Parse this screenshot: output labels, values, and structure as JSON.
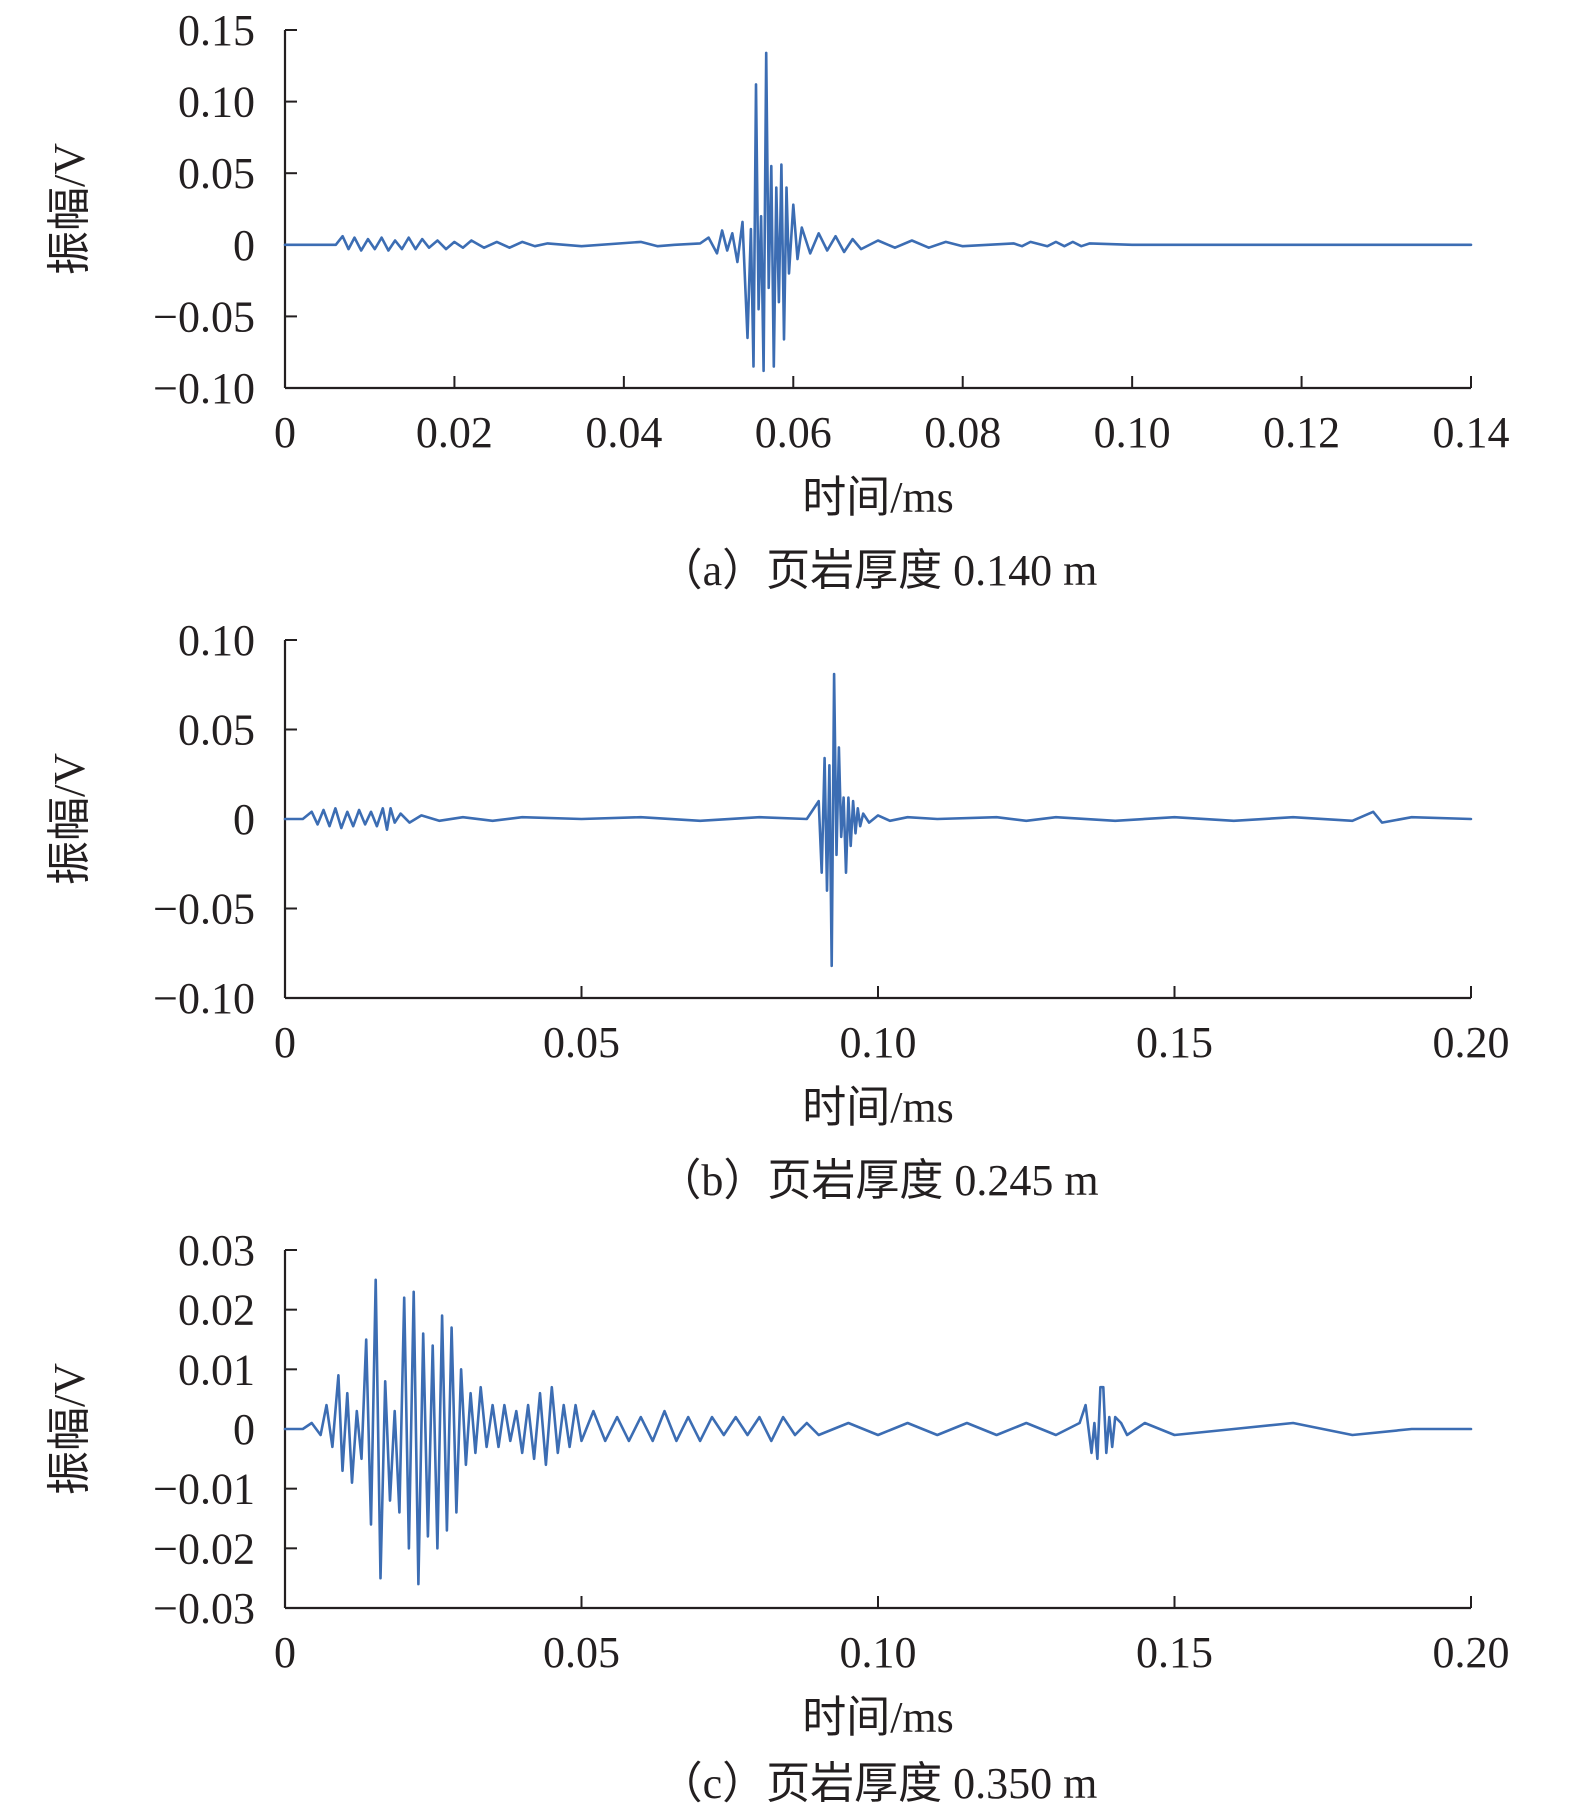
{
  "colors": {
    "series": "#3c6db3",
    "axis": "#231f20"
  },
  "chart_data": [
    {
      "type": "line",
      "caption": "（a）页岩厚度 0.140 m",
      "xlabel": "时间/ms",
      "ylabel": "振幅/V",
      "xlim": [
        0,
        0.14
      ],
      "ylim": [
        -0.1,
        0.15
      ],
      "xticks": [
        0,
        0.02,
        0.04,
        0.06,
        0.08,
        0.1,
        0.12,
        0.14
      ],
      "xtick_labels": [
        "0",
        "0.02",
        "0.04",
        "0.06",
        "0.08",
        "0.10",
        "0.12",
        "0.14"
      ],
      "yticks": [
        0.15,
        0.1,
        0.05,
        0,
        -0.05,
        -0.1
      ],
      "ytick_labels": [
        "0.15",
        "0.10",
        "0.05",
        "0",
        "−0.05",
        "−0.10"
      ],
      "grid": false,
      "series": [
        {
          "x": [
            0,
            0.006,
            0.0068,
            0.0075,
            0.0082,
            0.009,
            0.0098,
            0.0106,
            0.0114,
            0.0122,
            0.013,
            0.0138,
            0.0146,
            0.0154,
            0.0162,
            0.017,
            0.018,
            0.019,
            0.02,
            0.021,
            0.022,
            0.0235,
            0.025,
            0.0265,
            0.028,
            0.0295,
            0.031,
            0.035,
            0.042,
            0.044,
            0.046,
            0.049,
            0.05,
            0.051,
            0.0516,
            0.0522,
            0.0528,
            0.0534,
            0.054,
            0.0546,
            0.055,
            0.0553,
            0.0556,
            0.0559,
            0.0562,
            0.0565,
            0.0568,
            0.0571,
            0.0574,
            0.0577,
            0.058,
            0.0583,
            0.0586,
            0.0589,
            0.0592,
            0.0595,
            0.06,
            0.0605,
            0.061,
            0.062,
            0.063,
            0.064,
            0.065,
            0.066,
            0.067,
            0.068,
            0.07,
            0.072,
            0.074,
            0.076,
            0.078,
            0.08,
            0.086,
            0.087,
            0.088,
            0.09,
            0.091,
            0.092,
            0.093,
            0.094,
            0.095,
            0.1,
            0.14
          ],
          "y": [
            0,
            0,
            0.006,
            -0.003,
            0.005,
            -0.004,
            0.004,
            -0.003,
            0.005,
            -0.004,
            0.003,
            -0.003,
            0.005,
            -0.003,
            0.004,
            -0.002,
            0.003,
            -0.003,
            0.002,
            -0.002,
            0.003,
            -0.002,
            0.002,
            -0.002,
            0.002,
            -0.001,
            0.001,
            -0.001,
            0.002,
            -0.001,
            0,
            0.001,
            0.005,
            -0.006,
            0.01,
            -0.004,
            0.008,
            -0.012,
            0.016,
            -0.065,
            0.011,
            -0.085,
            0.112,
            -0.045,
            0.02,
            -0.088,
            0.134,
            -0.03,
            0.055,
            -0.085,
            0.04,
            -0.04,
            0.056,
            -0.066,
            0.04,
            -0.02,
            0.028,
            -0.01,
            0.012,
            -0.006,
            0.008,
            -0.004,
            0.006,
            -0.005,
            0.004,
            -0.003,
            0.003,
            -0.002,
            0.003,
            -0.002,
            0.002,
            -0.001,
            0.001,
            -0.001,
            0.002,
            -0.001,
            0.002,
            -0.001,
            0.002,
            -0.001,
            0.001,
            0,
            0
          ]
        }
      ]
    },
    {
      "type": "line",
      "caption": "（b）页岩厚度 0.245 m",
      "xlabel": "时间/ms",
      "ylabel": "振幅/V",
      "xlim": [
        0,
        0.2
      ],
      "ylim": [
        -0.1,
        0.1
      ],
      "xticks": [
        0,
        0.05,
        0.1,
        0.15,
        0.2
      ],
      "xtick_labels": [
        "0",
        "0.05",
        "0.10",
        "0.15",
        "0.20"
      ],
      "yticks": [
        0.1,
        0.05,
        0,
        -0.05,
        -0.1
      ],
      "ytick_labels": [
        "0.10",
        "0.05",
        "0",
        "−0.05",
        "−0.10"
      ],
      "grid": false,
      "series": [
        {
          "x": [
            0,
            0.003,
            0.0045,
            0.0055,
            0.0065,
            0.0075,
            0.0085,
            0.0095,
            0.0105,
            0.0115,
            0.0125,
            0.0135,
            0.0145,
            0.0155,
            0.0165,
            0.0172,
            0.0178,
            0.0185,
            0.0195,
            0.021,
            0.023,
            0.026,
            0.03,
            0.035,
            0.04,
            0.05,
            0.06,
            0.07,
            0.08,
            0.088,
            0.09,
            0.0905,
            0.091,
            0.0914,
            0.0918,
            0.0922,
            0.0926,
            0.093,
            0.0934,
            0.0938,
            0.0942,
            0.0946,
            0.095,
            0.0954,
            0.0958,
            0.0962,
            0.0966,
            0.097,
            0.0975,
            0.0985,
            0.1,
            0.102,
            0.105,
            0.11,
            0.12,
            0.125,
            0.13,
            0.14,
            0.15,
            0.16,
            0.17,
            0.18,
            0.1835,
            0.185,
            0.19,
            0.2
          ],
          "y": [
            0,
            0,
            0.004,
            -0.003,
            0.005,
            -0.004,
            0.006,
            -0.005,
            0.004,
            -0.004,
            0.005,
            -0.003,
            0.004,
            -0.004,
            0.006,
            -0.006,
            0.006,
            -0.002,
            0.003,
            -0.002,
            0.002,
            -0.001,
            0.001,
            -0.001,
            0.001,
            0,
            0.001,
            -0.001,
            0.001,
            0,
            0.01,
            -0.03,
            0.034,
            -0.04,
            0.03,
            -0.082,
            0.081,
            -0.02,
            0.04,
            -0.01,
            0.012,
            -0.03,
            0.012,
            -0.015,
            0.01,
            -0.008,
            0.006,
            -0.004,
            0.003,
            -0.002,
            0.002,
            -0.001,
            0.001,
            0,
            0.001,
            -0.001,
            0.001,
            -0.001,
            0.001,
            -0.001,
            0.001,
            -0.001,
            0.004,
            -0.002,
            0.001,
            0
          ]
        }
      ]
    },
    {
      "type": "line",
      "caption": "（c）页岩厚度 0.350 m",
      "xlabel": "时间/ms",
      "ylabel": "振幅/V",
      "xlim": [
        0,
        0.2
      ],
      "ylim": [
        -0.03,
        0.03
      ],
      "xticks": [
        0,
        0.05,
        0.1,
        0.15,
        0.2
      ],
      "xtick_labels": [
        "0",
        "0.05",
        "0.10",
        "0.15",
        "0.20"
      ],
      "yticks": [
        0.03,
        0.02,
        0.01,
        0,
        -0.01,
        -0.02,
        -0.03
      ],
      "ytick_labels": [
        "0.03",
        "0.02",
        "0.01",
        "0",
        "−0.01",
        "−0.02",
        "−0.03"
      ],
      "grid": false,
      "series": [
        {
          "x": [
            0,
            0.003,
            0.0045,
            0.006,
            0.007,
            0.008,
            0.009,
            0.0097,
            0.0105,
            0.0113,
            0.0121,
            0.0129,
            0.0137,
            0.0145,
            0.0153,
            0.0161,
            0.0169,
            0.0177,
            0.0185,
            0.0193,
            0.0201,
            0.0209,
            0.0217,
            0.0225,
            0.0233,
            0.0241,
            0.0249,
            0.0257,
            0.0265,
            0.0273,
            0.0281,
            0.0289,
            0.0297,
            0.0305,
            0.0313,
            0.0321,
            0.033,
            0.034,
            0.035,
            0.036,
            0.037,
            0.038,
            0.039,
            0.04,
            0.041,
            0.042,
            0.043,
            0.044,
            0.045,
            0.046,
            0.047,
            0.048,
            0.049,
            0.05,
            0.052,
            0.054,
            0.056,
            0.058,
            0.06,
            0.062,
            0.064,
            0.066,
            0.068,
            0.07,
            0.072,
            0.074,
            0.076,
            0.078,
            0.08,
            0.082,
            0.084,
            0.086,
            0.088,
            0.09,
            0.095,
            0.1,
            0.105,
            0.11,
            0.115,
            0.12,
            0.125,
            0.13,
            0.134,
            0.135,
            0.136,
            0.1365,
            0.137,
            0.1375,
            0.138,
            0.1385,
            0.139,
            0.1395,
            0.14,
            0.141,
            0.142,
            0.145,
            0.15,
            0.16,
            0.17,
            0.18,
            0.19,
            0.2
          ],
          "y": [
            0,
            0,
            0.001,
            -0.001,
            0.004,
            -0.003,
            0.009,
            -0.007,
            0.006,
            -0.009,
            0.003,
            -0.005,
            0.015,
            -0.016,
            0.025,
            -0.025,
            0.008,
            -0.012,
            0.003,
            -0.014,
            0.022,
            -0.02,
            0.023,
            -0.026,
            0.016,
            -0.018,
            0.014,
            -0.02,
            0.019,
            -0.017,
            0.017,
            -0.014,
            0.01,
            -0.006,
            0.006,
            -0.004,
            0.007,
            -0.003,
            0.004,
            -0.003,
            0.004,
            -0.002,
            0.003,
            -0.004,
            0.004,
            -0.005,
            0.006,
            -0.006,
            0.007,
            -0.004,
            0.004,
            -0.003,
            0.004,
            -0.002,
            0.003,
            -0.002,
            0.002,
            -0.002,
            0.002,
            -0.002,
            0.003,
            -0.002,
            0.002,
            -0.002,
            0.002,
            -0.001,
            0.002,
            -0.001,
            0.002,
            -0.002,
            0.002,
            -0.001,
            0.001,
            -0.001,
            0.001,
            -0.001,
            0.001,
            -0.001,
            0.001,
            -0.001,
            0.001,
            -0.001,
            0.001,
            0.004,
            -0.004,
            0.001,
            -0.005,
            0.007,
            0.007,
            -0.004,
            0.002,
            -0.003,
            0.002,
            0.001,
            -0.001,
            0.001,
            -0.001,
            0,
            0.001,
            -0.001,
            0,
            0
          ]
        }
      ]
    }
  ]
}
